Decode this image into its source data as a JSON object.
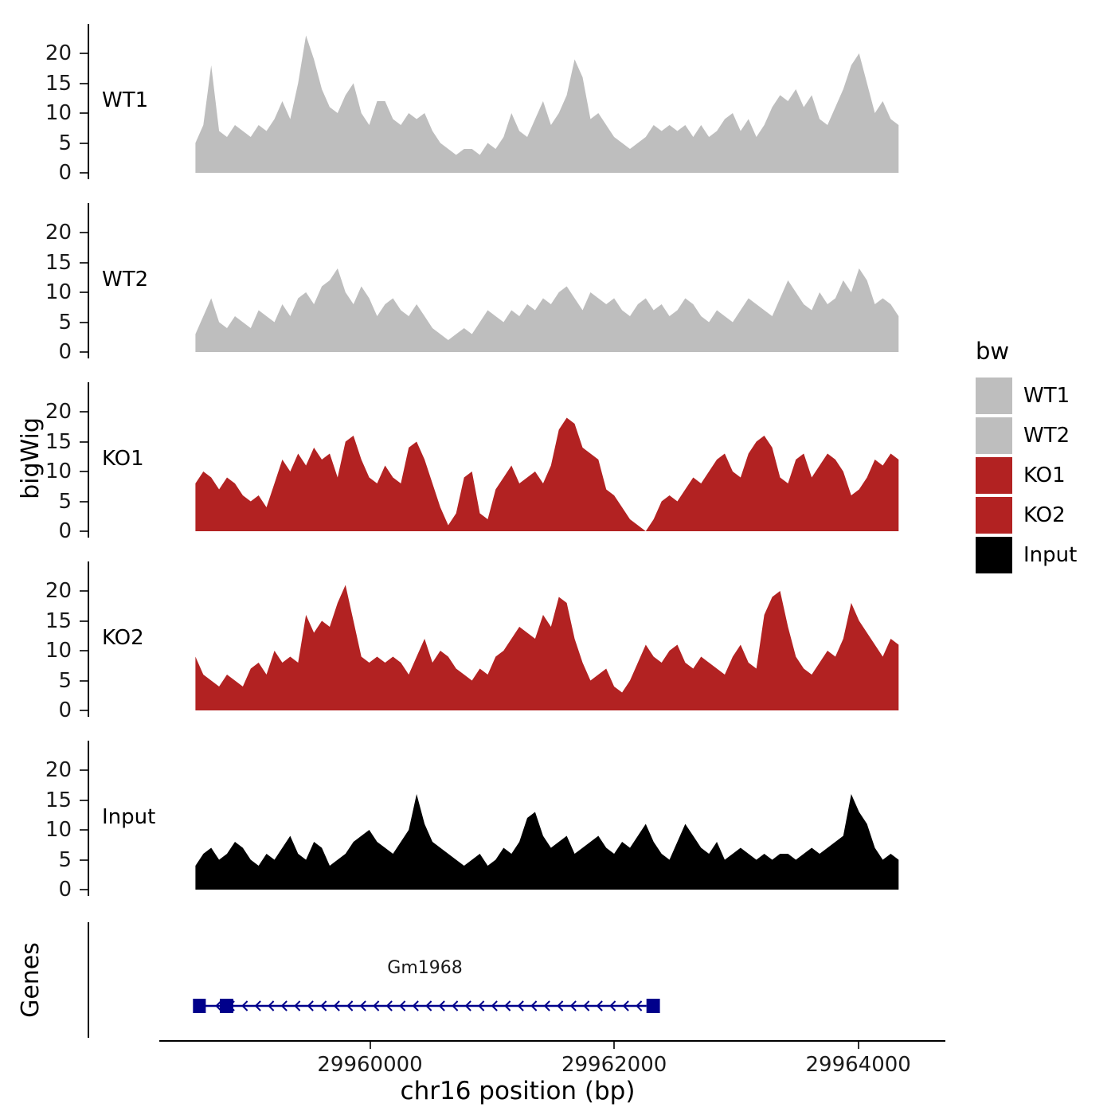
{
  "figure": {
    "ylab": "bigWig",
    "genes_lab": "Genes",
    "xlab": "chr16 position (bp)",
    "legend_title": "bw"
  },
  "colors": {
    "wt": "#BEBEBE",
    "ko": "#B22222",
    "input": "#000000",
    "gene": "#00008B",
    "axis": "#000000",
    "tick_text": "#1a1a1a"
  },
  "chart_data": {
    "type": "area",
    "title": "",
    "xlabel": "chr16 position (bp)",
    "ylabel": "bigWig",
    "legend_position": "right",
    "x_domain": [
      29957700,
      29964700
    ],
    "data_range": [
      29958570,
      29964330
    ],
    "y_max": 24,
    "y_ticks": [
      0,
      5,
      10,
      15,
      20
    ],
    "x_ticks": [
      29960000,
      29962000,
      29964000
    ],
    "x_tick_labels": [
      "29960000",
      "29962000",
      "29964000"
    ],
    "tracks": [
      {
        "name": "WT1",
        "color": "#BEBEBE",
        "values": [
          5,
          8,
          18,
          7,
          6,
          8,
          7,
          6,
          8,
          7,
          9,
          12,
          9,
          15,
          23,
          19,
          14,
          11,
          10,
          13,
          15,
          10,
          8,
          12,
          12,
          9,
          8,
          10,
          9,
          10,
          7,
          5,
          4,
          3,
          4,
          4,
          3,
          5,
          4,
          6,
          10,
          7,
          6,
          9,
          12,
          8,
          10,
          13,
          19,
          16,
          9,
          10,
          8,
          6,
          5,
          4,
          5,
          6,
          8,
          7,
          8,
          7,
          8,
          6,
          8,
          6,
          7,
          9,
          10,
          7,
          9,
          6,
          8,
          11,
          13,
          12,
          14,
          11,
          13,
          9,
          8,
          11,
          14,
          18,
          20,
          15,
          10,
          12,
          9,
          8
        ]
      },
      {
        "name": "WT2",
        "color": "#BEBEBE",
        "values": [
          3,
          6,
          9,
          5,
          4,
          6,
          5,
          4,
          7,
          6,
          5,
          8,
          6,
          9,
          10,
          8,
          11,
          12,
          14,
          10,
          8,
          11,
          9,
          6,
          8,
          9,
          7,
          6,
          8,
          6,
          4,
          3,
          2,
          3,
          4,
          3,
          5,
          7,
          6,
          5,
          7,
          6,
          8,
          7,
          9,
          8,
          10,
          11,
          9,
          7,
          10,
          9,
          8,
          9,
          7,
          6,
          8,
          9,
          7,
          8,
          6,
          7,
          9,
          8,
          6,
          5,
          7,
          6,
          5,
          7,
          9,
          8,
          7,
          6,
          9,
          12,
          10,
          8,
          7,
          10,
          8,
          9,
          12,
          10,
          14,
          12,
          8,
          9,
          8,
          6
        ]
      },
      {
        "name": "KO1",
        "color": "#B22222",
        "values": [
          8,
          10,
          9,
          7,
          9,
          8,
          6,
          5,
          6,
          4,
          8,
          12,
          10,
          13,
          11,
          14,
          12,
          13,
          9,
          15,
          16,
          12,
          9,
          8,
          11,
          9,
          8,
          14,
          15,
          12,
          8,
          4,
          1,
          3,
          9,
          10,
          3,
          2,
          7,
          9,
          11,
          8,
          9,
          10,
          8,
          11,
          17,
          19,
          18,
          14,
          13,
          12,
          7,
          6,
          4,
          2,
          1,
          0,
          2,
          5,
          6,
          5,
          7,
          9,
          8,
          10,
          12,
          13,
          10,
          9,
          13,
          15,
          16,
          14,
          9,
          8,
          12,
          13,
          9,
          11,
          13,
          12,
          10,
          6,
          7,
          9,
          12,
          11,
          13,
          12
        ]
      },
      {
        "name": "KO2",
        "color": "#B22222",
        "values": [
          9,
          6,
          5,
          4,
          6,
          5,
          4,
          7,
          8,
          6,
          10,
          8,
          9,
          8,
          16,
          13,
          15,
          14,
          18,
          21,
          15,
          9,
          8,
          9,
          8,
          9,
          8,
          6,
          9,
          12,
          8,
          10,
          9,
          7,
          6,
          5,
          7,
          6,
          9,
          10,
          12,
          14,
          13,
          12,
          16,
          14,
          19,
          18,
          12,
          8,
          5,
          6,
          7,
          4,
          3,
          5,
          8,
          11,
          9,
          8,
          10,
          11,
          8,
          7,
          9,
          8,
          7,
          6,
          9,
          11,
          8,
          7,
          16,
          19,
          20,
          14,
          9,
          7,
          6,
          8,
          10,
          9,
          12,
          18,
          15,
          13,
          11,
          9,
          12,
          11
        ]
      },
      {
        "name": "Input",
        "color": "#000000",
        "values": [
          4,
          6,
          7,
          5,
          6,
          8,
          7,
          5,
          4,
          6,
          5,
          7,
          9,
          6,
          5,
          8,
          7,
          4,
          5,
          6,
          8,
          9,
          10,
          8,
          7,
          6,
          8,
          10,
          16,
          11,
          8,
          7,
          6,
          5,
          4,
          5,
          6,
          4,
          5,
          7,
          6,
          8,
          12,
          13,
          9,
          7,
          8,
          9,
          6,
          7,
          8,
          9,
          7,
          6,
          8,
          7,
          9,
          11,
          8,
          6,
          5,
          8,
          11,
          9,
          7,
          6,
          8,
          5,
          6,
          7,
          6,
          5,
          6,
          5,
          6,
          6,
          5,
          6,
          7,
          6,
          7,
          8,
          9,
          16,
          13,
          11,
          7,
          5,
          6,
          5
        ]
      }
    ],
    "legend": [
      {
        "label": "WT1",
        "color": "#BEBEBE"
      },
      {
        "label": "WT2",
        "color": "#BEBEBE"
      },
      {
        "label": "KO1",
        "color": "#B22222"
      },
      {
        "label": "KO2",
        "color": "#B22222"
      },
      {
        "label": "Input",
        "color": "#000000"
      }
    ],
    "gene": {
      "name": "Gm1968",
      "strand": "-",
      "line": [
        29958650,
        29962265
      ],
      "exons": [
        [
          29958550,
          29958655
        ],
        [
          29958770,
          29958880
        ],
        [
          29962265,
          29962375
        ]
      ],
      "label_bp": 29960450
    }
  }
}
